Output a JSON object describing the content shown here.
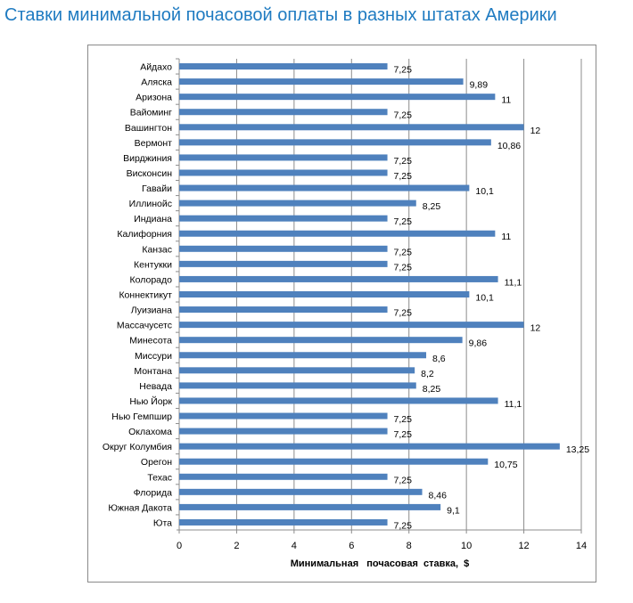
{
  "chart_data": {
    "type": "bar",
    "orientation": "horizontal",
    "title": "Ставки минимальной почасовой оплаты в разных штатах Америки",
    "xlabel": "Минимальная   почасовая  ставка,  $",
    "ylabel": "",
    "xlim": [
      0,
      14
    ],
    "xticks": [
      0,
      2,
      4,
      6,
      8,
      10,
      12,
      14
    ],
    "grid": "vertical",
    "bar_color": "#4f81bd",
    "categories": [
      "Айдахо",
      "Аляска",
      "Аризона",
      "Вайоминг",
      "Вашингтон",
      "Вермонт",
      "Вирджиния",
      "Висконсин",
      "Гавайи",
      "Иллинойс",
      "Индиана",
      "Калифорния",
      "Канзас",
      "Кентукки",
      "Колорадо",
      "Коннектикут",
      "Луизиана",
      "Массачусетс",
      "Минесота",
      "Миссури",
      "Монтана",
      "Невада",
      "Нью Йорк",
      "Нью Гемпшир",
      "Оклахома",
      "Округ Колумбия",
      "Орегон",
      "Техас",
      "Флорида",
      "Южная Дакота",
      "Юта"
    ],
    "values": [
      7.25,
      9.89,
      11,
      7.25,
      12,
      10.86,
      7.25,
      7.25,
      10.1,
      8.25,
      7.25,
      11,
      7.25,
      7.25,
      11.1,
      10.1,
      7.25,
      12,
      9.86,
      8.6,
      8.2,
      8.25,
      11.1,
      7.25,
      7.25,
      13.25,
      10.75,
      7.25,
      8.46,
      9.1,
      7.25
    ],
    "labels": [
      "7,25",
      "9,89",
      "11",
      "7,25",
      "12",
      "10,86",
      "7,25",
      "7,25",
      "10,1",
      "8,25",
      "7,25",
      "11",
      "7,25",
      "7,25",
      "11,1",
      "10,1",
      "7,25",
      "12",
      "9,86",
      "8,6",
      "8,2",
      "8,25",
      "11,1",
      "7,25",
      "7,25",
      "13,25",
      "10,75",
      "7,25",
      "8,46",
      "9,1",
      "7,25"
    ]
  }
}
